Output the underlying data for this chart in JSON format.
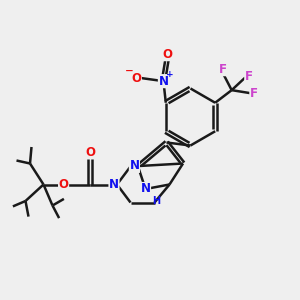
{
  "background_color": "#efefef",
  "bond_color": "#1a1a1a",
  "bond_width": 1.8,
  "atom_colors": {
    "C": "#1a1a1a",
    "N": "#1010ee",
    "O": "#ee1010",
    "F": "#cc44cc",
    "H": "#1010ee"
  },
  "font_size_atom": 8.5,
  "font_size_charge": 6.5,
  "font_size_H": 7.0
}
